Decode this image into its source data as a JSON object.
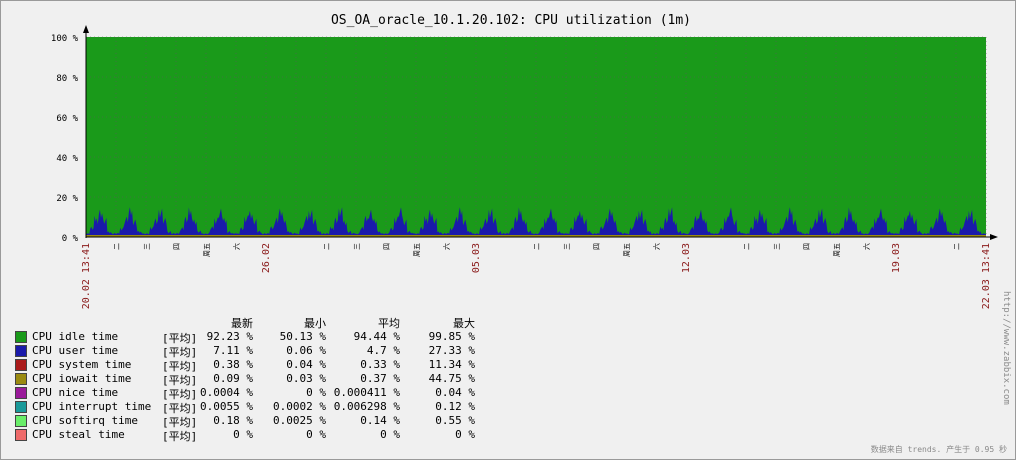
{
  "chart_data": {
    "type": "area",
    "title": "OS_OA_oracle_10.1.20.102: CPU utilization (1m)",
    "ylim": [
      0,
      100
    ],
    "y_ticks": [
      "0 %",
      "20 %",
      "40 %",
      "60 %",
      "80 %",
      "100 %"
    ],
    "x_range_label_start": "20.02 13:41",
    "x_range_label_end": "22.03 13:41",
    "x_date_labels": [
      "26.02",
      "05.03",
      "12.03",
      "19.03"
    ],
    "x_minor_labels": [
      "二",
      "三",
      "四",
      "周五",
      "六",
      "二",
      "三",
      "四",
      "周五",
      "六",
      "二",
      "三",
      "四",
      "周五",
      "六",
      "二",
      "三",
      "四",
      "周五",
      "六",
      "二"
    ],
    "series_note": "stacked area: user + system + iowait below idle; idle fills the remainder to 100%",
    "user_time_daily_pattern": [
      2,
      5,
      10,
      14,
      9,
      3,
      2
    ],
    "idle_time_level": 92.23,
    "legend_headers": [
      "最新",
      "最小",
      "平均",
      "最大"
    ],
    "legend": [
      {
        "name": "CPU idle time",
        "fn": "[平均]",
        "last": "92.23 %",
        "min": "50.13 %",
        "avg": "94.44 %",
        "max": "99.85 %",
        "color": "#1a9a1a"
      },
      {
        "name": "CPU user time",
        "fn": "[平均]",
        "last": "7.11 %",
        "min": "0.06 %",
        "avg": "4.7 %",
        "max": "27.33 %",
        "color": "#1a1aaa"
      },
      {
        "name": "CPU system time",
        "fn": "[平均]",
        "last": "0.38 %",
        "min": "0.04 %",
        "avg": "0.33 %",
        "max": "11.34 %",
        "color": "#aa1a1a"
      },
      {
        "name": "CPU iowait time",
        "fn": "[平均]",
        "last": "0.09 %",
        "min": "0.03 %",
        "avg": "0.37 %",
        "max": "44.75 %",
        "color": "#9a8a10"
      },
      {
        "name": "CPU nice time",
        "fn": "[平均]",
        "last": "0.0004 %",
        "min": "0 %",
        "avg": "0.000411 %",
        "max": "0.04 %",
        "color": "#9a1a9a"
      },
      {
        "name": "CPU interrupt time",
        "fn": "[平均]",
        "last": "0.0055 %",
        "min": "0.0002 %",
        "avg": "0.006298 %",
        "max": "0.12 %",
        "color": "#1a9a9a"
      },
      {
        "name": "CPU softirq time",
        "fn": "[平均]",
        "last": "0.18 %",
        "min": "0.0025 %",
        "avg": "0.14 %",
        "max": "0.55 %",
        "color": "#6aee6a"
      },
      {
        "name": "CPU steal time",
        "fn": "[平均]",
        "last": "0 %",
        "min": "0 %",
        "avg": "0 %",
        "max": "0 %",
        "color": "#ee6a6a"
      }
    ]
  },
  "watermark": "http://www.zabbix.com",
  "footer": "数据来自 trends. 产生于 0.95 秒"
}
